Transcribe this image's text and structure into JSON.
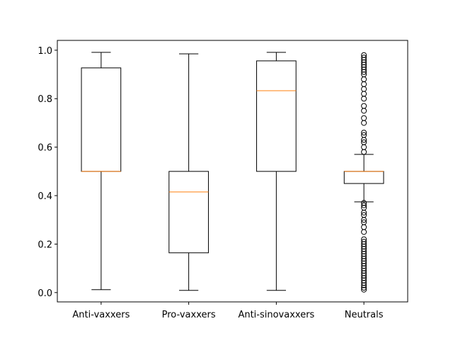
{
  "chart_data": {
    "type": "box",
    "categories": [
      "Anti-vaxxers",
      "Pro-vaxxers",
      "Anti-sinovaxxers",
      "Neutrals"
    ],
    "boxes": [
      {
        "low": 0.012,
        "q1": 0.5,
        "median": 0.5,
        "q3": 0.927,
        "high": 0.991,
        "fliers": []
      },
      {
        "low": 0.009,
        "q1": 0.164,
        "median": 0.415,
        "q3": 0.5,
        "high": 0.985,
        "fliers": []
      },
      {
        "low": 0.009,
        "q1": 0.5,
        "median": 0.833,
        "q3": 0.956,
        "high": 0.991,
        "fliers": []
      },
      {
        "low": 0.374,
        "q1": 0.45,
        "median": 0.5,
        "q3": 0.5,
        "high": 0.57,
        "fliers": [
          0.012,
          0.02,
          0.03,
          0.04,
          0.05,
          0.06,
          0.07,
          0.08,
          0.09,
          0.1,
          0.11,
          0.12,
          0.13,
          0.14,
          0.15,
          0.16,
          0.17,
          0.18,
          0.19,
          0.2,
          0.21,
          0.22,
          0.25,
          0.27,
          0.29,
          0.3,
          0.32,
          0.33,
          0.35,
          0.36,
          0.37,
          0.58,
          0.6,
          0.62,
          0.63,
          0.65,
          0.66,
          0.7,
          0.72,
          0.75,
          0.77,
          0.8,
          0.82,
          0.84,
          0.86,
          0.88,
          0.9,
          0.91,
          0.92,
          0.93,
          0.94,
          0.95,
          0.96,
          0.97,
          0.98
        ]
      }
    ],
    "box_color": "#000000",
    "median_color": "#ff7f0e",
    "ylim": [
      -0.0385,
      1.0405
    ],
    "yticks": [
      {
        "value": 0,
        "label": "0.0"
      },
      0.2,
      0.4,
      0.6,
      0.8,
      {
        "value": 1,
        "label": "1.0"
      }
    ]
  }
}
